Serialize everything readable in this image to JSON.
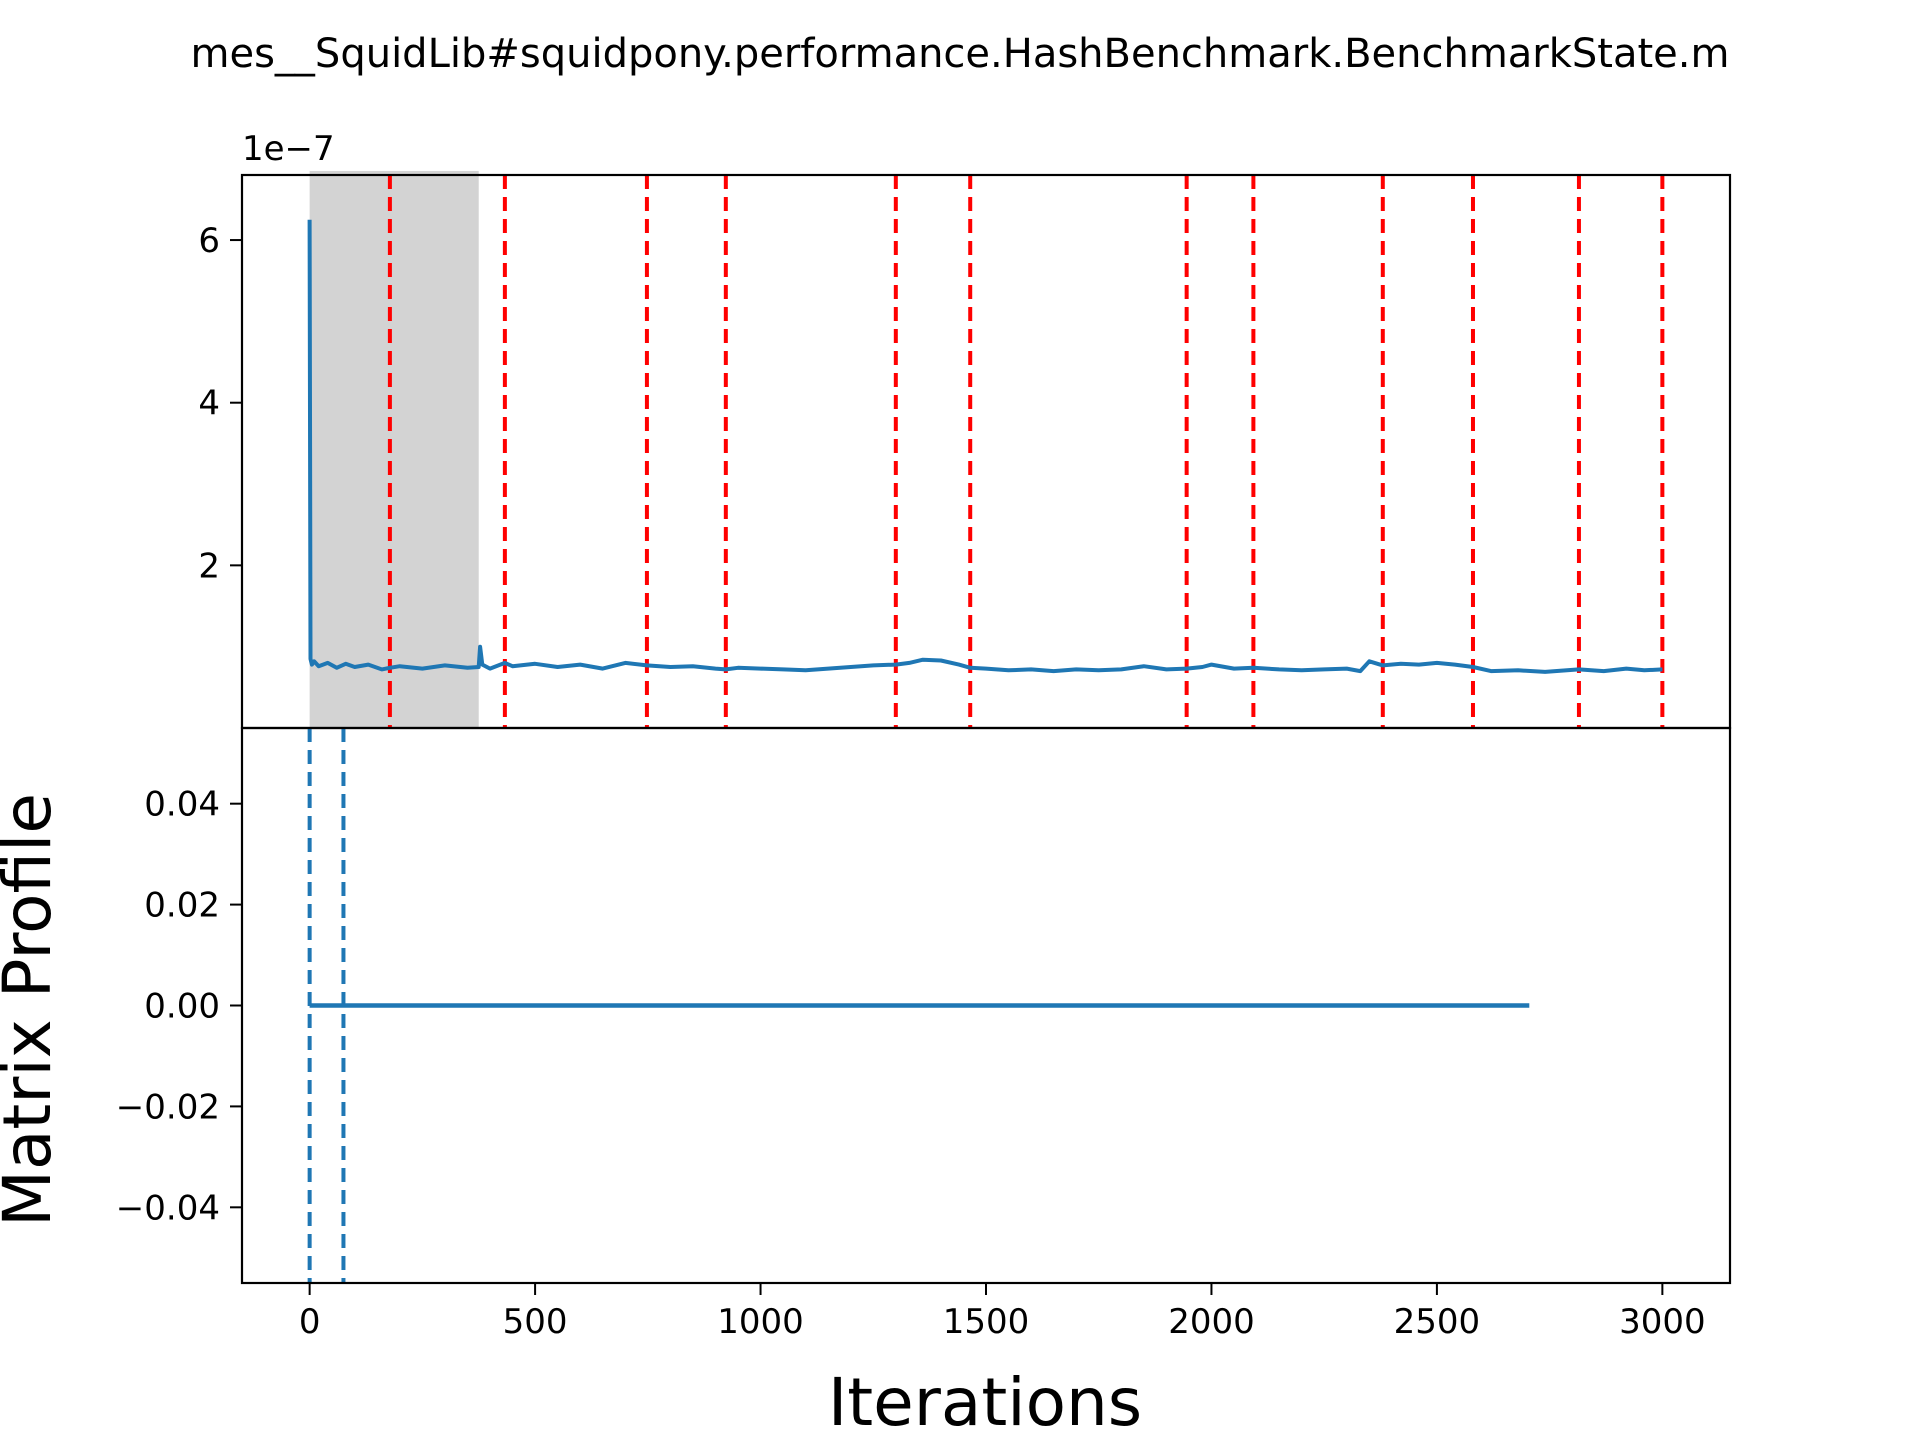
{
  "chart_data": [
    {
      "type": "line",
      "title": "mes__SquidLib#squidpony.performance.HashBenchmark.BenchmarkState.m",
      "offset_text": "1e−7",
      "xlim": [
        -150,
        3150
      ],
      "ylim": [
        0,
        6.8
      ],
      "y_scale_note": "1e-7",
      "yticks": [
        2,
        4,
        6
      ],
      "ytick_labels": [
        "2",
        "4",
        "6"
      ],
      "grid": false,
      "shaded_region": {
        "x_start": 0,
        "x_end": 375,
        "y_start": 0,
        "y_end": 6.85,
        "color": "#d3d3d3"
      },
      "change_points": [
        178,
        433,
        748,
        923,
        1300,
        1465,
        1945,
        2093,
        2380,
        2580,
        2815,
        3000
      ],
      "change_point_color": "#ff0000",
      "series": [
        {
          "color": "#1f77b4",
          "x": [
            0,
            2,
            5,
            10,
            20,
            40,
            60,
            80,
            100,
            130,
            160,
            178,
            200,
            250,
            300,
            350,
            375,
            378,
            383,
            400,
            433,
            450,
            500,
            550,
            600,
            650,
            700,
            748,
            800,
            850,
            900,
            923,
            950,
            1000,
            1050,
            1100,
            1150,
            1200,
            1250,
            1300,
            1330,
            1360,
            1400,
            1440,
            1465,
            1500,
            1550,
            1600,
            1650,
            1700,
            1750,
            1800,
            1850,
            1900,
            1945,
            1980,
            2000,
            2050,
            2093,
            2150,
            2200,
            2250,
            2300,
            2330,
            2350,
            2380,
            2420,
            2460,
            2500,
            2540,
            2580,
            2620,
            2680,
            2740,
            2815,
            2870,
            2920,
            2960,
            3000
          ],
          "y": [
            6.25,
            0.85,
            0.78,
            0.82,
            0.76,
            0.8,
            0.74,
            0.79,
            0.75,
            0.78,
            0.72,
            0.74,
            0.76,
            0.73,
            0.77,
            0.74,
            0.75,
            1.0,
            0.78,
            0.73,
            0.8,
            0.76,
            0.79,
            0.75,
            0.78,
            0.73,
            0.8,
            0.77,
            0.75,
            0.76,
            0.73,
            0.72,
            0.74,
            0.73,
            0.72,
            0.71,
            0.73,
            0.75,
            0.77,
            0.78,
            0.8,
            0.84,
            0.83,
            0.78,
            0.74,
            0.73,
            0.71,
            0.72,
            0.7,
            0.72,
            0.71,
            0.72,
            0.76,
            0.72,
            0.73,
            0.75,
            0.78,
            0.73,
            0.74,
            0.72,
            0.71,
            0.72,
            0.73,
            0.7,
            0.82,
            0.77,
            0.79,
            0.78,
            0.8,
            0.78,
            0.75,
            0.7,
            0.71,
            0.69,
            0.72,
            0.7,
            0.73,
            0.71,
            0.72
          ]
        }
      ]
    },
    {
      "type": "line",
      "xlabel": "Iterations",
      "ylabel": "Matrix Profile",
      "xlim": [
        -150,
        3150
      ],
      "ylim": [
        -0.055,
        0.055
      ],
      "xticks": [
        0,
        500,
        1000,
        1500,
        2000,
        2500,
        3000
      ],
      "xtick_labels": [
        "0",
        "500",
        "1000",
        "1500",
        "2000",
        "2500",
        "3000"
      ],
      "yticks": [
        0.04,
        0.02,
        0.0,
        -0.02,
        -0.04
      ],
      "ytick_labels": [
        "0.04",
        "0.02",
        "0.00",
        "−0.02",
        "−0.04"
      ],
      "grid": false,
      "markers": [
        0,
        75
      ],
      "marker_color": "#1f77b4",
      "series": [
        {
          "color": "#1f77b4",
          "x": [
            0,
            2705
          ],
          "y": [
            0.0,
            0.0
          ]
        }
      ]
    }
  ]
}
